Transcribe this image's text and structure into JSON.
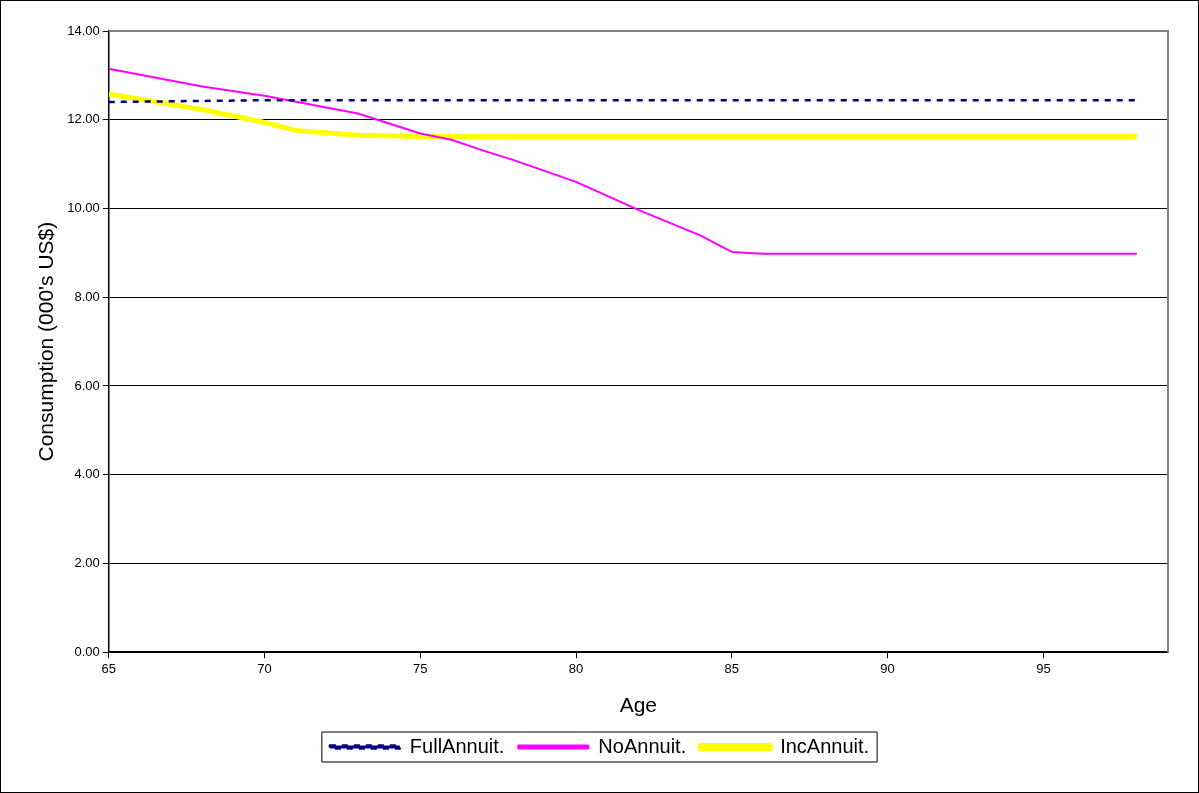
{
  "chart_data": {
    "type": "line",
    "xlabel": "Age",
    "ylabel": "Consumption (000's US$)",
    "xlim": [
      65,
      99
    ],
    "xticks": [
      65,
      70,
      75,
      80,
      85,
      90,
      95
    ],
    "ylim": [
      0,
      14
    ],
    "yticks": [
      {
        "value": 0,
        "label": "0.00"
      },
      {
        "value": 2,
        "label": "2.00"
      },
      {
        "value": 4,
        "label": "4.00"
      },
      {
        "value": 6,
        "label": "6.00"
      },
      {
        "value": 8,
        "label": "8.00"
      },
      {
        "value": 10,
        "label": "10.00"
      },
      {
        "value": 12,
        "label": "12.00"
      },
      {
        "value": 14,
        "label": "14.00"
      }
    ],
    "grid": "y",
    "legend": "bottom",
    "marker": "none",
    "series": [
      {
        "name": "FullAnnuit.",
        "color": "#000080",
        "line_style": "dashed",
        "x": [
          65,
          70,
          75,
          80,
          85,
          90,
          95,
          98
        ],
        "values": [
          12.4,
          12.44,
          12.44,
          12.44,
          12.44,
          12.44,
          12.44,
          12.44
        ]
      },
      {
        "name": "NoAnnuit.",
        "color": "#ff00ff",
        "line_style": "solid",
        "x": [
          65,
          68,
          70,
          73,
          75,
          76,
          77,
          78,
          80,
          82,
          84,
          85,
          86,
          90,
          95,
          98
        ],
        "values": [
          13.15,
          12.75,
          12.54,
          12.14,
          11.69,
          11.55,
          11.31,
          11.09,
          10.6,
          9.97,
          9.39,
          9.02,
          8.98,
          8.98,
          8.98,
          8.98
        ]
      },
      {
        "name": "IncAnnuit.",
        "color": "#ffff00",
        "line_style": "solid",
        "x": [
          65,
          68,
          70,
          71,
          73,
          75,
          80,
          85,
          90,
          95,
          98
        ],
        "values": [
          12.58,
          12.23,
          11.94,
          11.76,
          11.65,
          11.62,
          11.62,
          11.62,
          11.62,
          11.62,
          11.62
        ]
      }
    ]
  }
}
